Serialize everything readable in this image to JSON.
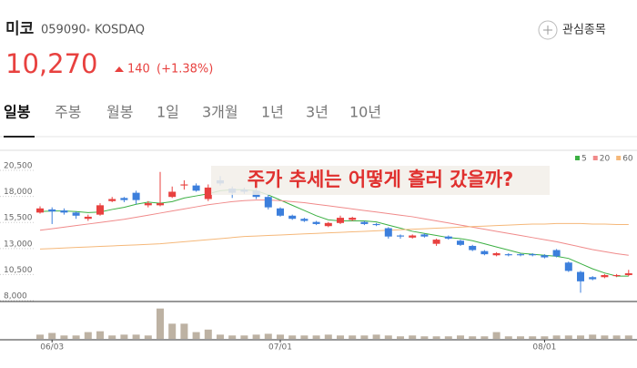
{
  "header": {
    "name": "미코",
    "code": "059090",
    "market": "KOSDAQ",
    "price": "10,270",
    "change": "140",
    "change_pct": "(+1.38%)",
    "watch": "관심종목"
  },
  "tabs": [
    "일봉",
    "주봉",
    "월봉",
    "1일",
    "3개월",
    "1년",
    "3년",
    "10년"
  ],
  "chart_data": {
    "type": "candlestick",
    "annotation": "주가 추세는 어떻게 흘러 갔을까?",
    "categories": [
      null,
      "06/03",
      null,
      null,
      null,
      null,
      null,
      null,
      null,
      null,
      null,
      null,
      null,
      null,
      null,
      null,
      null,
      null,
      null,
      null,
      "07/01",
      null,
      null,
      null,
      null,
      null,
      null,
      null,
      null,
      null,
      null,
      null,
      null,
      null,
      null,
      null,
      null,
      null,
      null,
      null,
      null,
      null,
      "08/01",
      null,
      null,
      null,
      null,
      null,
      null,
      null
    ],
    "open": [
      16100,
      16400,
      16300,
      16100,
      15500,
      15900,
      17200,
      17500,
      18000,
      16800,
      16800,
      17600,
      18700,
      18700,
      17400,
      19200,
      18400,
      18300,
      18200,
      17600,
      16500,
      15800,
      15500,
      15200,
      14800,
      15100,
      15400,
      15200,
      15000,
      14600,
      13900,
      13700,
      14000,
      13100,
      13800,
      13400,
      12900,
      12400,
      12000,
      12100,
      12100,
      12100,
      12000,
      12500,
      11300,
      10400,
      9900,
      9900,
      10000,
      10100
    ],
    "high": [
      16700,
      16600,
      16500,
      16200,
      15900,
      17000,
      17600,
      17600,
      18200,
      17200,
      20000,
      18600,
      19200,
      18900,
      18800,
      19600,
      18600,
      18500,
      18400,
      17800,
      16600,
      15900,
      15600,
      15300,
      15200,
      15800,
      15700,
      15300,
      15100,
      14700,
      14000,
      14000,
      14100,
      13600,
      13900,
      13500,
      13000,
      12500,
      12300,
      12200,
      12200,
      12200,
      12100,
      12600,
      11400,
      10500,
      10000,
      10200,
      10200,
      10600
    ],
    "low": [
      16000,
      15000,
      15900,
      15500,
      15300,
      15800,
      17100,
      17100,
      16900,
      16600,
      16700,
      17500,
      18300,
      18100,
      17200,
      18700,
      17500,
      17900,
      17400,
      16400,
      15700,
      15400,
      15200,
      14900,
      14700,
      15000,
      15300,
      14900,
      14800,
      13600,
      13600,
      13600,
      13700,
      12900,
      13500,
      12900,
      12400,
      12000,
      11900,
      11900,
      11900,
      11900,
      11700,
      11800,
      10400,
      8400,
      9600,
      9800,
      9900,
      10000
    ],
    "close": [
      16500,
      16200,
      16100,
      15800,
      15700,
      16800,
      17400,
      17300,
      17300,
      17000,
      17000,
      18100,
      18800,
      18200,
      18500,
      18900,
      18000,
      18100,
      17600,
      16600,
      15800,
      15500,
      15300,
      15000,
      15100,
      15600,
      15600,
      15000,
      14900,
      13800,
      13800,
      13900,
      13800,
      13500,
      13600,
      13000,
      12500,
      12100,
      12200,
      12000,
      12000,
      12000,
      11800,
      11900,
      10500,
      9500,
      9700,
      10100,
      10100,
      10270
    ],
    "up_color": "#e8413f",
    "down_color": "#3c7fdc",
    "series": [
      {
        "name": "5",
        "color": "#3cb043",
        "values": [
          16200,
          16250,
          16250,
          16200,
          16100,
          16150,
          16400,
          16600,
          16900,
          17100,
          17000,
          17150,
          17500,
          17700,
          17900,
          18200,
          18300,
          18300,
          18200,
          17800,
          17300,
          16800,
          16300,
          15800,
          15400,
          15300,
          15300,
          15300,
          15200,
          14900,
          14600,
          14300,
          14100,
          13900,
          13700,
          13600,
          13400,
          13100,
          12800,
          12500,
          12200,
          12100,
          12000,
          11900,
          11700,
          11200,
          10700,
          10300,
          10000,
          10000
        ]
      },
      {
        "name": "20",
        "color": "#f08a8a",
        "values": [
          14400,
          14550,
          14700,
          14850,
          15000,
          15150,
          15300,
          15450,
          15650,
          15850,
          16050,
          16250,
          16450,
          16650,
          16850,
          17000,
          17150,
          17250,
          17300,
          17300,
          17250,
          17150,
          17050,
          16900,
          16750,
          16600,
          16450,
          16300,
          16150,
          16000,
          15850,
          15700,
          15500,
          15300,
          15100,
          14900,
          14700,
          14500,
          14300,
          14100,
          13900,
          13700,
          13500,
          13300,
          13050,
          12800,
          12550,
          12350,
          12150,
          12000
        ]
      },
      {
        "name": "60",
        "color": "#f5b87a",
        "values": [
          12600,
          12650,
          12700,
          12750,
          12800,
          12850,
          12900,
          12950,
          13000,
          13050,
          13100,
          13200,
          13300,
          13400,
          13500,
          13600,
          13700,
          13800,
          13850,
          13900,
          13950,
          14000,
          14050,
          14100,
          14150,
          14200,
          14250,
          14300,
          14350,
          14400,
          14450,
          14500,
          14550,
          14600,
          14650,
          14700,
          14750,
          14800,
          14850,
          14900,
          14950,
          15000,
          15000,
          15050,
          15050,
          15050,
          15000,
          15000,
          14950,
          14950
        ]
      }
    ],
    "volume": {
      "color": "#bdb2a3",
      "values": [
        5,
        7,
        4,
        4,
        8,
        9,
        4,
        5,
        5,
        4,
        36,
        18,
        18,
        8,
        11,
        5,
        4,
        4,
        5,
        6,
        5,
        4,
        4,
        4,
        5,
        4,
        4,
        4,
        5,
        4,
        3,
        4,
        3,
        3,
        3,
        4,
        3,
        3,
        8,
        3,
        3,
        3,
        3,
        4,
        4,
        4,
        5,
        4,
        4,
        4
      ]
    },
    "ylim": [
      7650,
      21640
    ],
    "yticks": [
      {
        "value": 20500,
        "label": "20,500"
      },
      {
        "value": 18000,
        "label": "18,000"
      },
      {
        "value": 15500,
        "label": "15,500"
      },
      {
        "value": 13000,
        "label": "13,000"
      },
      {
        "value": 10500,
        "label": "10,500"
      },
      {
        "value": 8000,
        "label": "8,000"
      }
    ],
    "y2lim": [
      0,
      40
    ]
  }
}
